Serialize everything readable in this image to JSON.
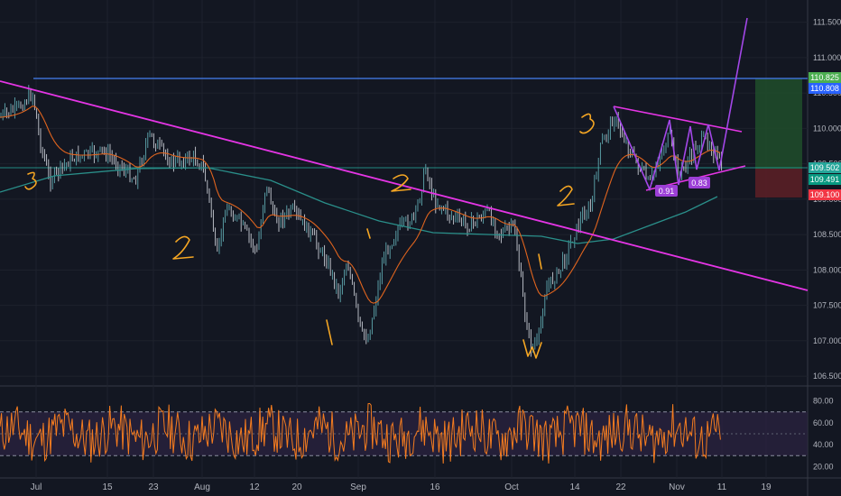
{
  "chart_data": {
    "type": "line",
    "main_axis": {
      "y_ticks": [
        "111.500",
        "111.000",
        "110.500",
        "110.000",
        "109.500",
        "109.000",
        "108.500",
        "108.000",
        "107.500",
        "107.000",
        "106.500"
      ],
      "ylim": [
        106.4,
        111.75
      ],
      "price_labels": [
        {
          "value": "110.825",
          "color": "#4caf50"
        },
        {
          "value": "110.808",
          "color": "#2962ff"
        },
        {
          "value": "109.502",
          "color": "#26a69a"
        },
        {
          "value": "109.491",
          "color": "#089981"
        },
        {
          "value": "109.100",
          "color": "#f23645"
        }
      ]
    },
    "x_ticks": [
      "Jul",
      "15",
      "23",
      "Aug",
      "12",
      "20",
      "Sep",
      "16",
      "Oct",
      "14",
      "22",
      "Nov",
      "11",
      "19"
    ],
    "indicator": {
      "y_ticks": [
        "80.00",
        "60.00",
        "40.00",
        "20.00"
      ],
      "ylim": [
        12,
        88
      ],
      "upper_band": 70,
      "lower_band": 30
    },
    "annotations": {
      "badge_1": "0.91",
      "badge_2": "0.83"
    },
    "colors": {
      "background": "#131722",
      "price": "#5f9ea8",
      "ema_fast": "#e0641e",
      "ema_slow": "#2a8f8a",
      "trendline": "#e535e5",
      "resistance": "#3d6fd0",
      "handwriting": "#f5a623",
      "oscillator": "#f57c1f",
      "osc_band_fill": "#2b2340"
    }
  }
}
